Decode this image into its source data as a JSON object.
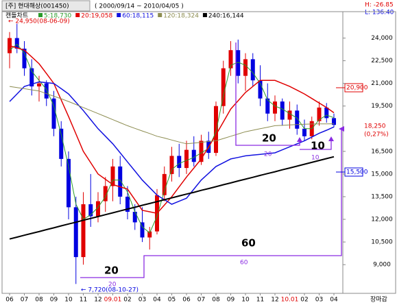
{
  "header": {
    "title": "[주] 현대해상(001450)",
    "period": "( 2000/09/14 ~ 2010/04/05 )",
    "h": "H: -26.85",
    "l": "L: 136.40"
  },
  "chart_data": {
    "type": "candlestick",
    "label": "캔들차트",
    "categories": [
      "06",
      null,
      "07",
      null,
      "08",
      null,
      "09",
      null,
      "10",
      null,
      "11",
      null,
      "12",
      null,
      "09.01",
      null,
      "02",
      null,
      "03",
      null,
      "04",
      null,
      "05",
      null,
      "06",
      null,
      "07",
      null,
      "08",
      null,
      "09",
      null,
      "10",
      null,
      "11",
      null,
      "12",
      null,
      "10.01",
      null,
      "02",
      null,
      "03",
      null,
      "04"
    ],
    "open": [
      23000,
      24000,
      23300,
      22000,
      20800,
      21000,
      20000,
      18000,
      16000,
      12800,
      9500,
      13000,
      12200,
      13200,
      14200,
      15500,
      13500,
      12500,
      11800,
      10800,
      11200,
      13600,
      15000,
      16200,
      15400,
      16600,
      15800,
      17200,
      16400,
      19500,
      22000,
      23200,
      21500,
      22600,
      21200,
      20000,
      19000,
      19800,
      18600,
      19200,
      18000,
      17500,
      18500,
      19400,
      18700
    ],
    "high": [
      24400,
      24950,
      23800,
      22600,
      21500,
      21200,
      20500,
      18500,
      16500,
      13500,
      13800,
      15000,
      13800,
      14800,
      16000,
      16200,
      14200,
      13000,
      12800,
      11500,
      14000,
      15500,
      16800,
      17000,
      17200,
      17500,
      17600,
      17800,
      19800,
      22500,
      23800,
      23900,
      23000,
      23000,
      22200,
      21000,
      20200,
      20000,
      19800,
      19600,
      18600,
      18800,
      19800,
      19700,
      19000
    ],
    "low": [
      22000,
      23000,
      21500,
      20200,
      19800,
      19500,
      17500,
      15500,
      12000,
      7720,
      9000,
      11500,
      11800,
      12500,
      13200,
      13000,
      12000,
      11300,
      10500,
      10000,
      11000,
      13200,
      14500,
      14800,
      15000,
      15500,
      15600,
      16000,
      16200,
      19000,
      21500,
      21000,
      20500,
      20800,
      19500,
      18500,
      18500,
      18200,
      18000,
      17600,
      17200,
      17300,
      18200,
      18400,
      18100
    ],
    "close": [
      24000,
      23300,
      22000,
      20800,
      21000,
      20000,
      18000,
      16000,
      12800,
      9500,
      13000,
      12200,
      13200,
      14200,
      15500,
      13500,
      12500,
      11800,
      10800,
      11200,
      13600,
      15000,
      16200,
      15400,
      16600,
      15800,
      17200,
      16400,
      19500,
      22000,
      23200,
      21500,
      22600,
      21200,
      20000,
      19000,
      19800,
      18600,
      19200,
      18000,
      17500,
      18500,
      19400,
      18700,
      18250
    ],
    "up_color": "#e00000",
    "down_color": "#0000e0",
    "series": [
      {
        "name": "5:18,730",
        "color": "#2a9a2a",
        "values": [
          23200,
          23600,
          23000,
          21800,
          21200,
          20600,
          19500,
          17600,
          15500,
          13000,
          12000,
          12300,
          12800,
          13500,
          14600,
          14600,
          13800,
          12500,
          11500,
          11100,
          12200,
          13900,
          15300,
          15700,
          15900,
          16100,
          16400,
          16700,
          17800,
          20200,
          22200,
          22400,
          22200,
          21700,
          21000,
          19900,
          19500,
          19300,
          19000,
          18700,
          18000,
          18000,
          18600,
          18900,
          18730
        ]
      },
      {
        "name": "20:19,058",
        "color": "#e00000",
        "values": [
          23500,
          23350,
          23200,
          22750,
          22300,
          21650,
          21000,
          19900,
          18800,
          17650,
          16500,
          15750,
          15000,
          14650,
          14300,
          14150,
          14000,
          13300,
          12600,
          12500,
          12400,
          12950,
          13500,
          14150,
          14800,
          15400,
          16000,
          16800,
          17600,
          18450,
          19300,
          19850,
          20400,
          20800,
          21200,
          21200,
          21200,
          21000,
          20800,
          20550,
          20300,
          20000,
          19700,
          19400,
          19058
        ]
      },
      {
        "name": "60:18,115",
        "color": "#1010e0",
        "values": [
          19800,
          20300,
          20800,
          20950,
          21100,
          21050,
          21000,
          20650,
          20300,
          19750,
          19200,
          18600,
          18000,
          17500,
          17000,
          16400,
          15800,
          15200,
          14600,
          14100,
          13600,
          13300,
          13000,
          13200,
          13400,
          14000,
          14600,
          15050,
          15500,
          15750,
          16000,
          16100,
          16200,
          16250,
          16300,
          16350,
          16400,
          16600,
          16800,
          17000,
          17200,
          17450,
          17700,
          17900,
          18115
        ]
      },
      {
        "name": "120:18,324",
        "color": "#8c8c50",
        "values": [
          20800,
          20720,
          20650,
          20570,
          20500,
          20320,
          20150,
          19980,
          19800,
          19600,
          19400,
          19200,
          19000,
          18800,
          18600,
          18400,
          18200,
          18020,
          17850,
          17680,
          17500,
          17380,
          17250,
          17120,
          17000,
          17050,
          17100,
          17150,
          17200,
          17350,
          17500,
          17650,
          17800,
          17900,
          18000,
          18100,
          18200,
          18220,
          18250,
          18270,
          18300,
          18310,
          18320,
          18320,
          18324
        ]
      },
      {
        "name": "240:16,144",
        "color": "#000000",
        "values": [
          10700,
          10820,
          10950,
          11070,
          11190,
          11320,
          11440,
          11570,
          11690,
          11810,
          11940,
          12060,
          12180,
          12310,
          12430,
          12560,
          12680,
          12800,
          12930,
          13050,
          13170,
          13300,
          13420,
          13550,
          13670,
          13790,
          13920,
          14040,
          14160,
          14290,
          14410,
          14540,
          14660,
          14780,
          14910,
          15030,
          15150,
          15280,
          15400,
          15520,
          15650,
          15770,
          15900,
          16020,
          16144
        ]
      }
    ],
    "ylim": [
      7100,
      25250
    ],
    "yticks": [
      {
        "value": 24000,
        "label": "24,000"
      },
      {
        "value": 22500,
        "label": "22,500"
      },
      {
        "value": 21000,
        "label": "21,000"
      },
      {
        "value": 19500,
        "label": "19,500"
      },
      {
        "value": 16500,
        "label": "16,500"
      },
      {
        "value": 15000,
        "label": "15,000"
      },
      {
        "value": 13500,
        "label": "13,500"
      },
      {
        "value": 12000,
        "label": "12,000"
      },
      {
        "value": 10500,
        "label": "10,500"
      },
      {
        "value": 9000,
        "label": "9,000"
      }
    ],
    "max_label": "← 24,950(08-06-09)",
    "min_label": "← 7,720(08-10-27)",
    "price_labels": {
      "resistance": "20,900",
      "last": "18,250",
      "change": "(0,27%)",
      "support": "15,500"
    },
    "wave_labels": [
      "20",
      "60",
      "20",
      "10"
    ],
    "wave_sublabels": [
      "20",
      "60",
      "20",
      "10"
    ],
    "close_label": "장마감"
  }
}
